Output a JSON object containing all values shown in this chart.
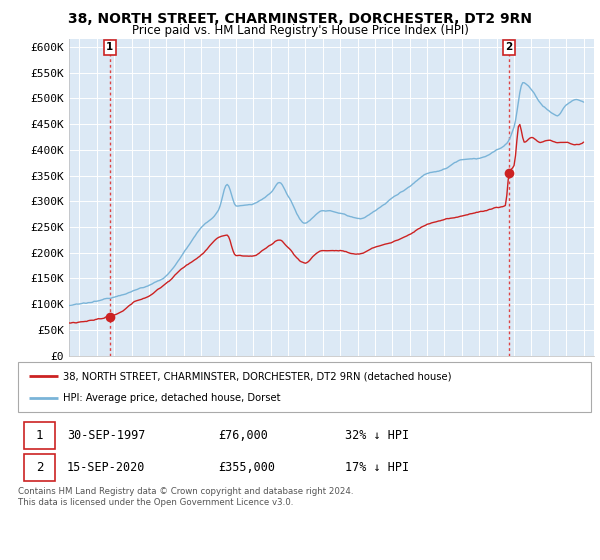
{
  "title1": "38, NORTH STREET, CHARMINSTER, DORCHESTER, DT2 9RN",
  "title2": "Price paid vs. HM Land Registry's House Price Index (HPI)",
  "ylabel_ticks": [
    "£0",
    "£50K",
    "£100K",
    "£150K",
    "£200K",
    "£250K",
    "£300K",
    "£350K",
    "£400K",
    "£450K",
    "£500K",
    "£550K",
    "£600K"
  ],
  "ytick_values": [
    0,
    50000,
    100000,
    150000,
    200000,
    250000,
    300000,
    350000,
    400000,
    450000,
    500000,
    550000,
    600000
  ],
  "xlim_start": 1995.4,
  "xlim_end": 2025.6,
  "ylim": [
    0,
    615000
  ],
  "sale1_x": 1997.75,
  "sale1_y": 76000,
  "sale2_x": 2020.72,
  "sale2_y": 355000,
  "legend_line1": "38, NORTH STREET, CHARMINSTER, DORCHESTER, DT2 9RN (detached house)",
  "legend_line2": "HPI: Average price, detached house, Dorset",
  "ann1_date": "30-SEP-1997",
  "ann1_price": "£76,000",
  "ann1_hpi": "32% ↓ HPI",
  "ann2_date": "15-SEP-2020",
  "ann2_price": "£355,000",
  "ann2_hpi": "17% ↓ HPI",
  "footer": "Contains HM Land Registry data © Crown copyright and database right 2024.\nThis data is licensed under the Open Government Licence v3.0.",
  "hpi_color": "#7ab4d8",
  "price_color": "#cc2222",
  "vline_color": "#dd4444",
  "bg_color": "#dce9f5",
  "grid_color": "#ffffff",
  "fig_bg": "#ffffff"
}
